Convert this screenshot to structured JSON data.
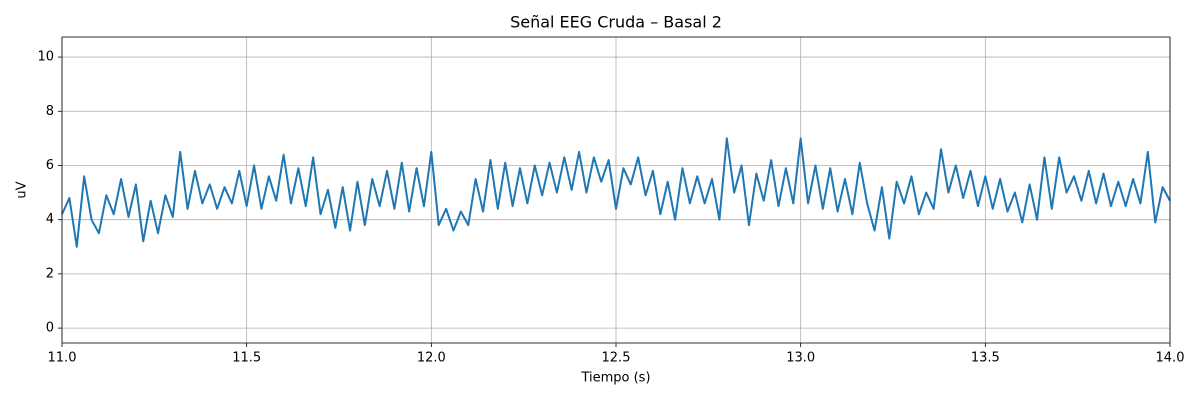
{
  "chart_data": {
    "type": "line",
    "title": "Señal EEG Cruda – Basal 2",
    "x_label": "Tiempo (s)",
    "y_label": "uV",
    "color": "#1f77b4",
    "grid": true,
    "xlim": [
      11,
      14
    ],
    "ylim": [
      -0.55,
      10.74
    ],
    "xticks": [
      {
        "value": 11,
        "label": "11.0"
      },
      11.5,
      {
        "value": 12,
        "label": "12.0"
      },
      12.5,
      {
        "value": 13,
        "label": "13.0"
      },
      13.5,
      {
        "value": 14,
        "label": "14.0"
      }
    ],
    "yticks": [
      0,
      2,
      4,
      6,
      8,
      10
    ],
    "x": [
      11.0,
      11.02,
      11.04,
      11.06,
      11.08,
      11.1,
      11.12,
      11.14,
      11.16,
      11.18,
      11.2,
      11.22,
      11.24,
      11.26,
      11.28,
      11.3,
      11.32,
      11.34,
      11.36,
      11.38,
      11.4,
      11.42,
      11.44,
      11.46,
      11.48,
      11.5,
      11.52,
      11.54,
      11.56,
      11.58,
      11.6,
      11.62,
      11.64,
      11.66,
      11.68,
      11.7,
      11.72,
      11.74,
      11.76,
      11.78,
      11.8,
      11.82,
      11.84,
      11.86,
      11.88,
      11.9,
      11.92,
      11.94,
      11.96,
      11.98,
      12.0,
      12.02,
      12.04,
      12.06,
      12.08,
      12.1,
      12.12,
      12.14,
      12.16,
      12.18,
      12.2,
      12.22,
      12.24,
      12.26,
      12.28,
      12.3,
      12.32,
      12.34,
      12.36,
      12.38,
      12.4,
      12.42,
      12.44,
      12.46,
      12.48,
      12.5,
      12.52,
      12.54,
      12.56,
      12.58,
      12.6,
      12.62,
      12.64,
      12.66,
      12.68,
      12.7,
      12.72,
      12.74,
      12.76,
      12.78,
      12.8,
      12.82,
      12.84,
      12.86,
      12.88,
      12.9,
      12.92,
      12.94,
      12.96,
      12.98,
      13.0,
      13.02,
      13.04,
      13.06,
      13.08,
      13.1,
      13.12,
      13.14,
      13.16,
      13.18,
      13.2,
      13.22,
      13.24,
      13.26,
      13.28,
      13.3,
      13.32,
      13.34,
      13.36,
      13.38,
      13.4,
      13.42,
      13.44,
      13.46,
      13.48,
      13.5,
      13.52,
      13.54,
      13.56,
      13.58,
      13.6,
      13.62,
      13.64,
      13.66,
      13.68,
      13.7,
      13.72,
      13.74,
      13.76,
      13.78,
      13.8,
      13.82,
      13.84,
      13.86,
      13.88,
      13.9,
      13.92,
      13.94,
      13.96,
      13.98,
      14.0
    ],
    "values": [
      4.2,
      4.8,
      3.0,
      5.6,
      4.0,
      3.5,
      4.9,
      4.2,
      5.5,
      4.1,
      5.3,
      3.2,
      4.7,
      3.5,
      4.9,
      4.1,
      6.5,
      4.4,
      5.8,
      4.6,
      5.3,
      4.4,
      5.2,
      4.6,
      5.8,
      4.5,
      6.0,
      4.4,
      5.6,
      4.7,
      6.4,
      4.6,
      5.9,
      4.5,
      6.3,
      4.2,
      5.1,
      3.7,
      5.2,
      3.6,
      5.4,
      3.8,
      5.5,
      4.5,
      5.8,
      4.4,
      6.1,
      4.3,
      5.9,
      4.5,
      6.5,
      3.8,
      4.4,
      3.6,
      4.3,
      3.8,
      5.5,
      4.3,
      6.2,
      4.4,
      6.1,
      4.5,
      5.9,
      4.6,
      6.0,
      4.9,
      6.1,
      5.0,
      6.3,
      5.1,
      6.5,
      5.0,
      6.3,
      5.4,
      6.2,
      4.4,
      5.9,
      5.3,
      6.3,
      4.9,
      5.8,
      4.2,
      5.4,
      4.0,
      5.9,
      4.6,
      5.6,
      4.6,
      5.5,
      4.0,
      7.0,
      5.0,
      6.0,
      3.8,
      5.7,
      4.7,
      6.2,
      4.5,
      5.9,
      4.6,
      7.0,
      4.6,
      6.0,
      4.4,
      5.9,
      4.3,
      5.5,
      4.2,
      6.1,
      4.6,
      3.6,
      5.2,
      3.3,
      5.4,
      4.6,
      5.6,
      4.2,
      5.0,
      4.4,
      6.6,
      5.0,
      6.0,
      4.8,
      5.8,
      4.5,
      5.6,
      4.4,
      5.5,
      4.3,
      5.0,
      3.9,
      5.3,
      4.0,
      6.3,
      4.4,
      6.3,
      5.0,
      5.6,
      4.7,
      5.8,
      4.6,
      5.7,
      4.5,
      5.4,
      4.5,
      5.5,
      4.6,
      6.5,
      3.9,
      5.2,
      4.7
    ]
  }
}
